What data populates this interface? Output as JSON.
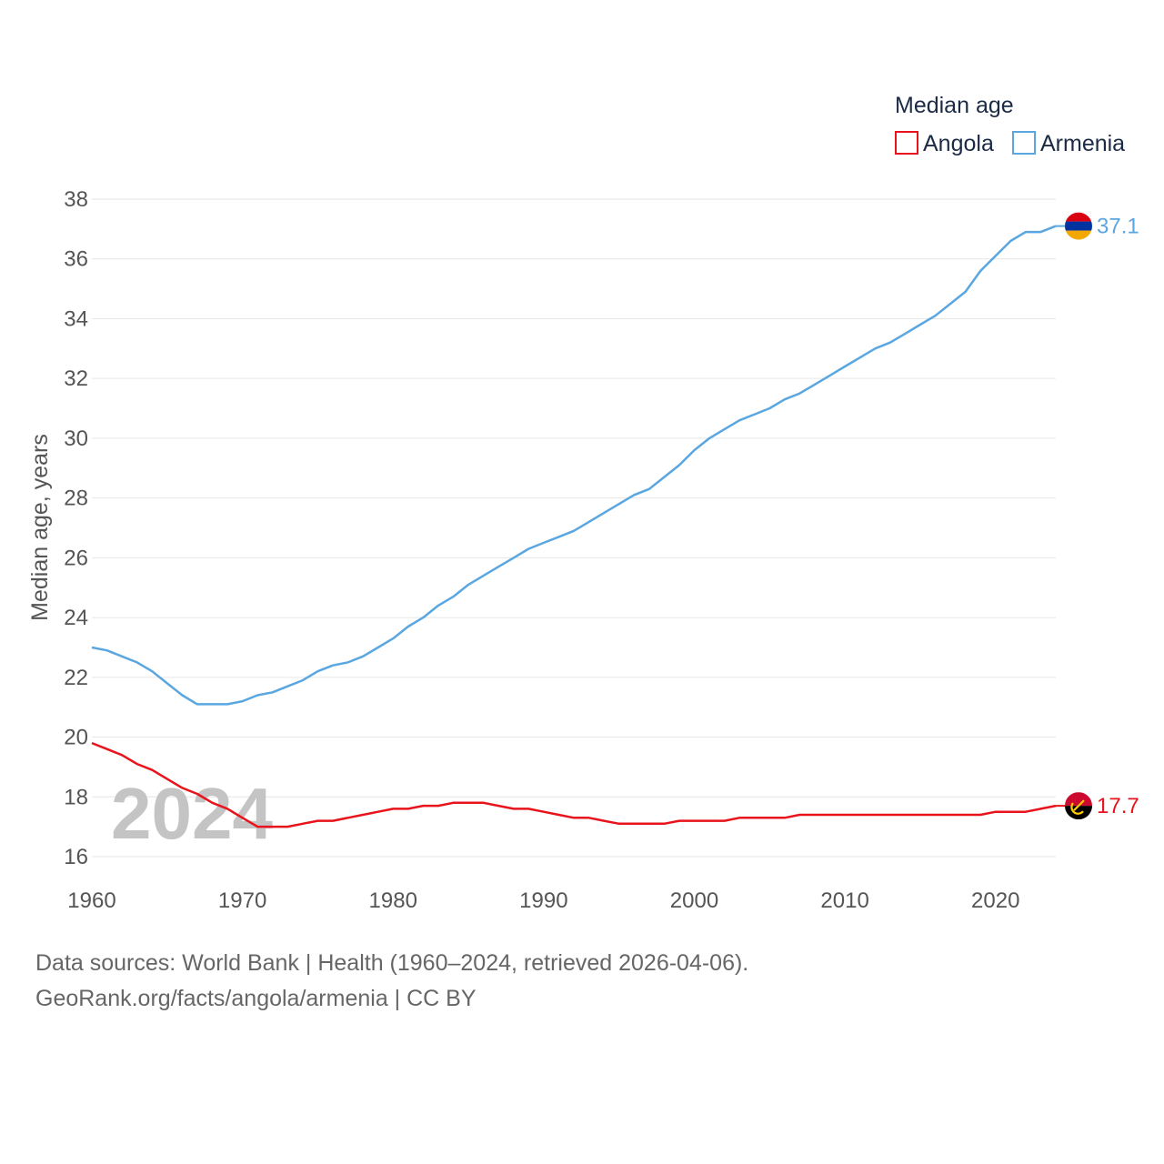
{
  "chart_data": {
    "type": "line",
    "title": "",
    "xlabel": "",
    "ylabel": "Median age, years",
    "xlim": [
      1960,
      2024
    ],
    "ylim": [
      16,
      38
    ],
    "xticks": [
      1960,
      1970,
      1980,
      1990,
      2000,
      2010,
      2020
    ],
    "yticks": [
      16,
      18,
      20,
      22,
      24,
      26,
      28,
      30,
      32,
      34,
      36,
      38
    ],
    "grid": true,
    "legend": {
      "title": "Median age",
      "position": "top-right"
    },
    "current_year_label": "2024",
    "x": [
      1960,
      1961,
      1962,
      1963,
      1964,
      1965,
      1966,
      1967,
      1968,
      1969,
      1970,
      1971,
      1972,
      1973,
      1974,
      1975,
      1976,
      1977,
      1978,
      1979,
      1980,
      1981,
      1982,
      1983,
      1984,
      1985,
      1986,
      1987,
      1988,
      1989,
      1990,
      1991,
      1992,
      1993,
      1994,
      1995,
      1996,
      1997,
      1998,
      1999,
      2000,
      2001,
      2002,
      2003,
      2004,
      2005,
      2006,
      2007,
      2008,
      2009,
      2010,
      2011,
      2012,
      2013,
      2014,
      2015,
      2016,
      2017,
      2018,
      2019,
      2020,
      2021,
      2022,
      2023,
      2024
    ],
    "series": [
      {
        "name": "Angola",
        "color": "#e8131b",
        "end_label": "17.7",
        "flag": "angola-flag",
        "values": [
          19.8,
          19.6,
          19.4,
          19.1,
          18.9,
          18.6,
          18.3,
          18.1,
          17.8,
          17.6,
          17.3,
          17.0,
          17.0,
          17.0,
          17.1,
          17.2,
          17.2,
          17.3,
          17.4,
          17.5,
          17.6,
          17.6,
          17.7,
          17.7,
          17.8,
          17.8,
          17.8,
          17.7,
          17.6,
          17.6,
          17.5,
          17.4,
          17.3,
          17.3,
          17.2,
          17.1,
          17.1,
          17.1,
          17.1,
          17.2,
          17.2,
          17.2,
          17.2,
          17.3,
          17.3,
          17.3,
          17.3,
          17.4,
          17.4,
          17.4,
          17.4,
          17.4,
          17.4,
          17.4,
          17.4,
          17.4,
          17.4,
          17.4,
          17.4,
          17.4,
          17.5,
          17.5,
          17.5,
          17.6,
          17.7
        ]
      },
      {
        "name": "Armenia",
        "color": "#5aa6e0",
        "end_label": "37.1",
        "flag": "armenia-flag",
        "values": [
          23.0,
          22.9,
          22.7,
          22.5,
          22.2,
          21.8,
          21.4,
          21.1,
          21.1,
          21.1,
          21.2,
          21.4,
          21.5,
          21.7,
          21.9,
          22.2,
          22.4,
          22.5,
          22.7,
          23.0,
          23.3,
          23.7,
          24.0,
          24.4,
          24.7,
          25.1,
          25.4,
          25.7,
          26.0,
          26.3,
          26.5,
          26.7,
          26.9,
          27.2,
          27.5,
          27.8,
          28.1,
          28.3,
          28.7,
          29.1,
          29.6,
          30.0,
          30.3,
          30.6,
          30.8,
          31.0,
          31.3,
          31.5,
          31.8,
          32.1,
          32.4,
          32.7,
          33.0,
          33.2,
          33.5,
          33.8,
          34.1,
          34.5,
          34.9,
          35.6,
          36.1,
          36.6,
          36.9,
          36.9,
          37.1
        ]
      }
    ]
  },
  "footer": {
    "sources": "Data sources: World Bank | Health (1960–2024, retrieved 2026-04-06).",
    "credit": "GeoRank.org/facts/angola/armenia | CC BY"
  }
}
